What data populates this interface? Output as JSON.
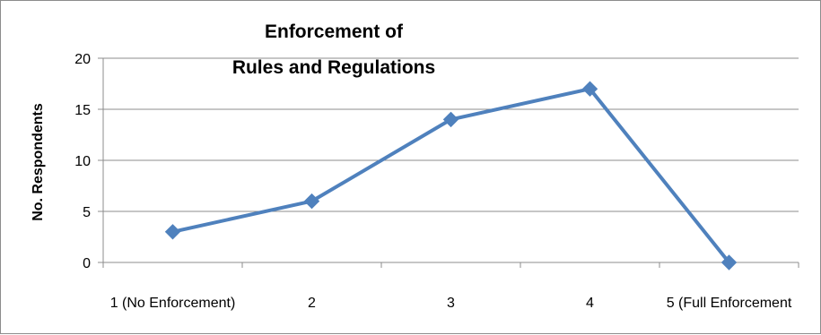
{
  "chart_data": {
    "type": "line",
    "title": "Enforcement of Rules and Regulations",
    "title_lines": [
      "Enforcement of",
      "Rules and Regulations"
    ],
    "xlabel": "",
    "ylabel": "No. Respondents",
    "categories": [
      "1 (No Enforcement)",
      "2",
      "3",
      "4",
      "5 (Full Enforcement"
    ],
    "series": [
      {
        "values": [
          3,
          6,
          14,
          17,
          0
        ],
        "color": "#4f81bd",
        "marker": "diamond"
      }
    ],
    "ylim": [
      0,
      20
    ],
    "yticks": [
      "0",
      "5",
      "10",
      "15",
      "20"
    ],
    "grid": true,
    "legend": "none"
  }
}
